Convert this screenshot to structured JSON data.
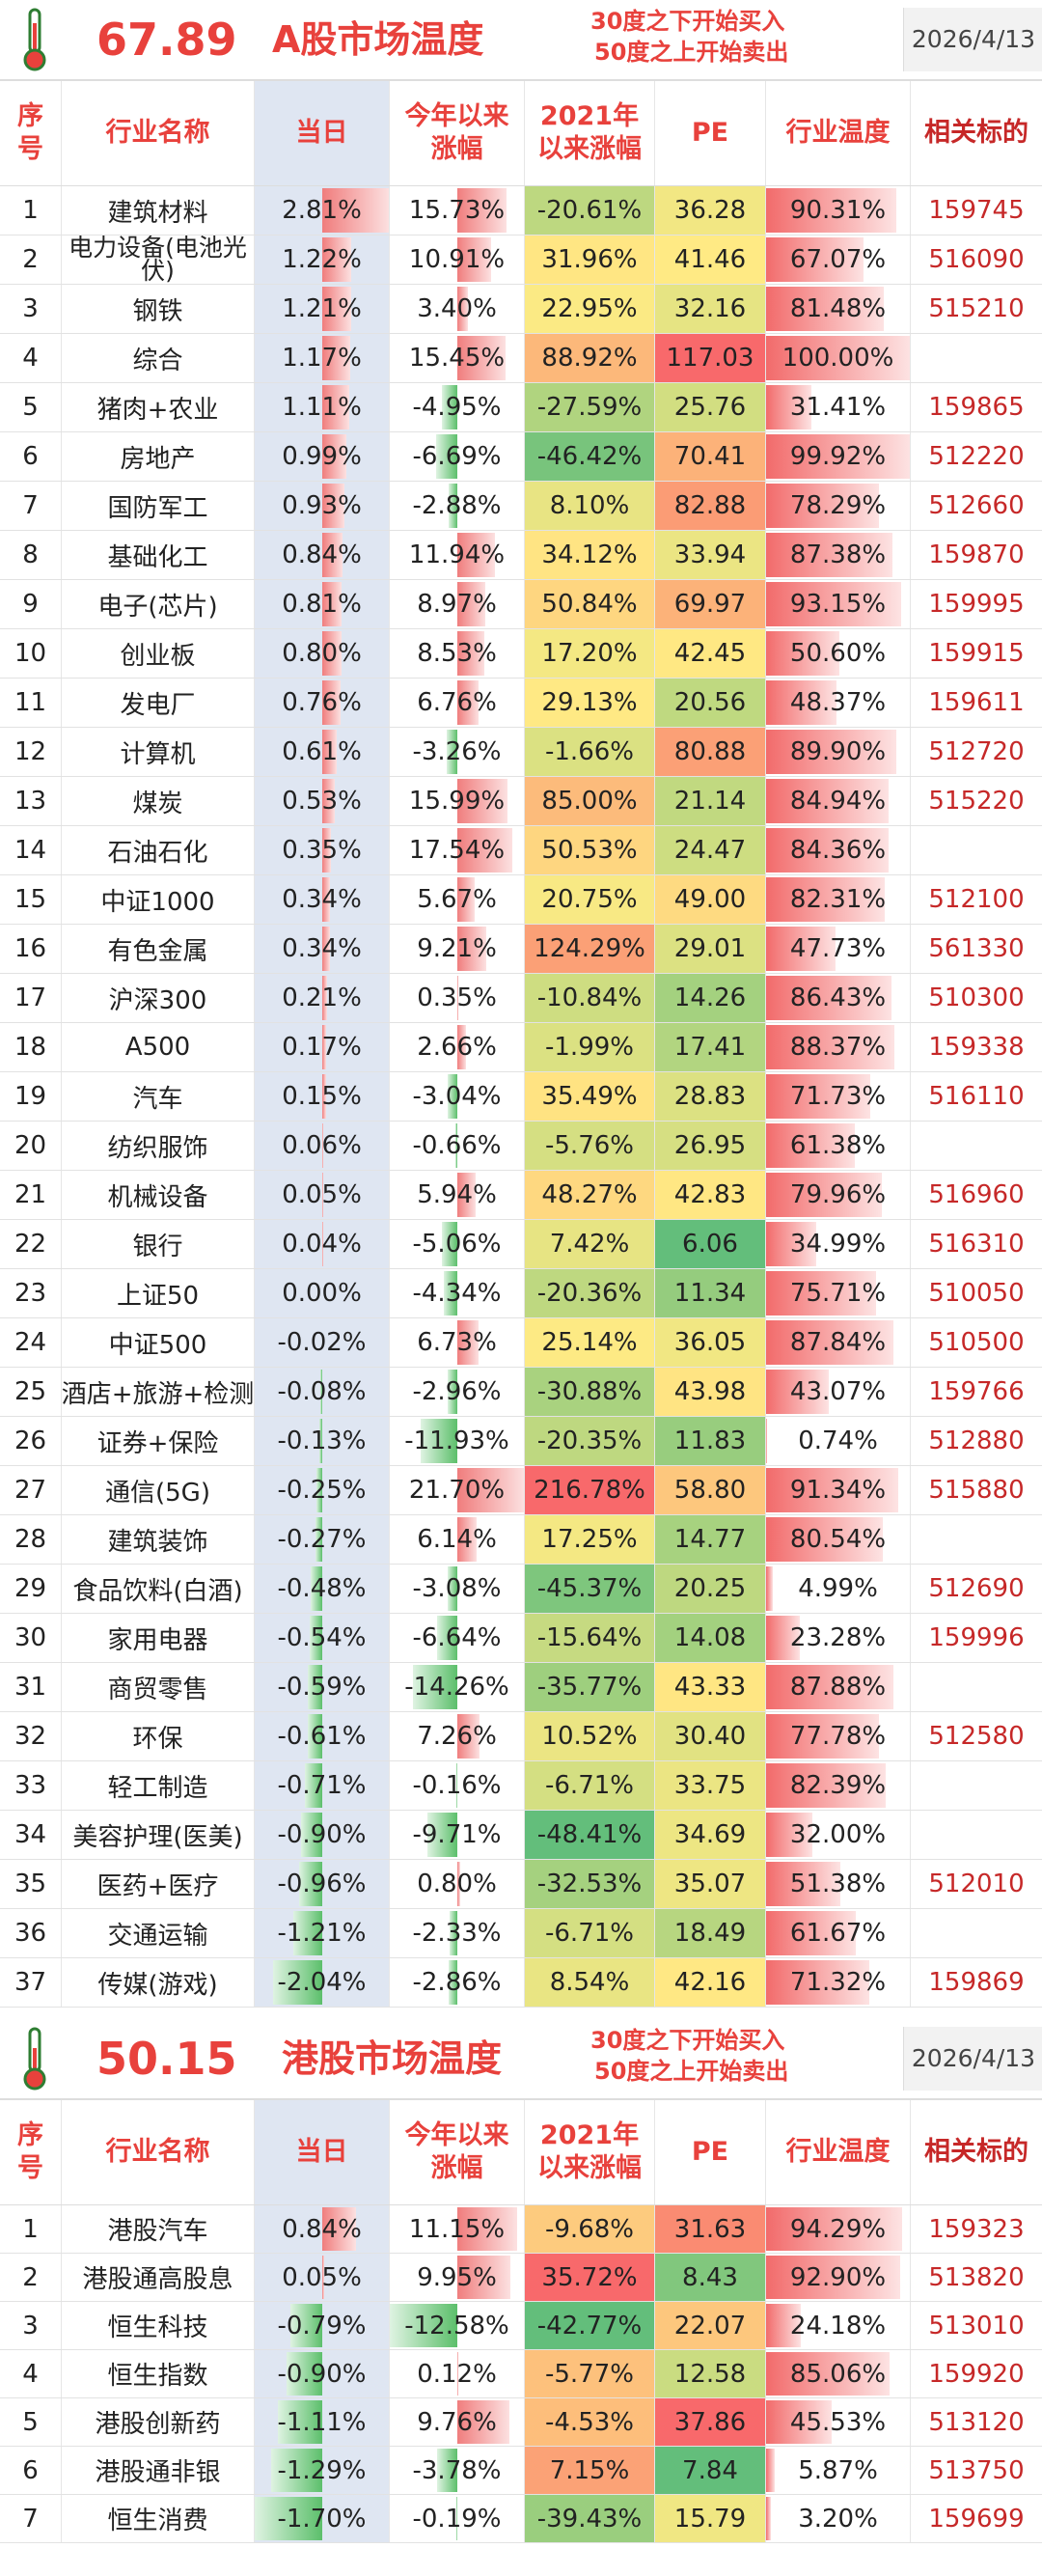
{
  "colors": {
    "red": "#e8413c",
    "bar_red": "#f4a9a9",
    "bar_green": "#7fc98a",
    "code": "#c62828",
    "day_bg": "#dfe6f2"
  },
  "icons": {
    "thermometer": "thermometer-icon"
  },
  "columns": [
    "序号",
    "行业名称",
    "当日",
    "今年以来涨幅",
    "2021年以来涨幅",
    "PE",
    "行业温度",
    "相关标的"
  ],
  "a_share": {
    "temperature": "67.89",
    "title": "A股市场温度",
    "note_line1": "30度之下开始买入",
    "note_line2": "50度之上开始卖出",
    "date": "2026/4/13",
    "rows": [
      {
        "idx": "1",
        "name": "建筑材料",
        "day": 2.81,
        "ytd": 15.73,
        "since": -20.61,
        "pe": "36.28",
        "temp": 90.31,
        "code": "159745"
      },
      {
        "idx": "2",
        "name": "电力设备(电池光伏)",
        "day": 1.22,
        "ytd": 10.91,
        "since": 31.96,
        "pe": "41.46",
        "temp": 67.07,
        "code": "516090"
      },
      {
        "idx": "3",
        "name": "钢铁",
        "day": 1.21,
        "ytd": 3.4,
        "since": 22.95,
        "pe": "32.16",
        "temp": 81.48,
        "code": "515210"
      },
      {
        "idx": "4",
        "name": "综合",
        "day": 1.17,
        "ytd": 15.45,
        "since": 88.92,
        "pe": "117.03",
        "temp": 100.0,
        "code": ""
      },
      {
        "idx": "5",
        "name": "猪肉+农业",
        "day": 1.11,
        "ytd": -4.95,
        "since": -27.59,
        "pe": "25.76",
        "temp": 31.41,
        "code": "159865"
      },
      {
        "idx": "6",
        "name": "房地产",
        "day": 0.99,
        "ytd": -6.69,
        "since": -46.42,
        "pe": "70.41",
        "temp": 99.92,
        "code": "512220"
      },
      {
        "idx": "7",
        "name": "国防军工",
        "day": 0.93,
        "ytd": -2.88,
        "since": 8.1,
        "pe": "82.88",
        "temp": 78.29,
        "code": "512660"
      },
      {
        "idx": "8",
        "name": "基础化工",
        "day": 0.84,
        "ytd": 11.94,
        "since": 34.12,
        "pe": "33.94",
        "temp": 87.38,
        "code": "159870"
      },
      {
        "idx": "9",
        "name": "电子(芯片)",
        "day": 0.81,
        "ytd": 8.97,
        "since": 50.84,
        "pe": "69.97",
        "temp": 93.15,
        "code": "159995"
      },
      {
        "idx": "10",
        "name": "创业板",
        "day": 0.8,
        "ytd": 8.53,
        "since": 17.2,
        "pe": "42.45",
        "temp": 50.6,
        "code": "159915"
      },
      {
        "idx": "11",
        "name": "发电厂",
        "day": 0.76,
        "ytd": 6.76,
        "since": 29.13,
        "pe": "20.56",
        "temp": 48.37,
        "code": "159611"
      },
      {
        "idx": "12",
        "name": "计算机",
        "day": 0.61,
        "ytd": -3.26,
        "since": -1.66,
        "pe": "80.88",
        "temp": 89.9,
        "code": "512720"
      },
      {
        "idx": "13",
        "name": "煤炭",
        "day": 0.53,
        "ytd": 15.99,
        "since": 85.0,
        "pe": "21.14",
        "temp": 84.94,
        "code": "515220"
      },
      {
        "idx": "14",
        "name": "石油石化",
        "day": 0.35,
        "ytd": 17.54,
        "since": 50.53,
        "pe": "24.47",
        "temp": 84.36,
        "code": ""
      },
      {
        "idx": "15",
        "name": "中证1000",
        "day": 0.34,
        "ytd": 5.67,
        "since": 20.75,
        "pe": "49.00",
        "temp": 82.31,
        "code": "512100"
      },
      {
        "idx": "16",
        "name": "有色金属",
        "day": 0.34,
        "ytd": 9.21,
        "since": 124.29,
        "pe": "29.01",
        "temp": 47.73,
        "code": "561330"
      },
      {
        "idx": "17",
        "name": "沪深300",
        "day": 0.21,
        "ytd": 0.35,
        "since": -10.84,
        "pe": "14.26",
        "temp": 86.43,
        "code": "510300"
      },
      {
        "idx": "18",
        "name": "A500",
        "day": 0.17,
        "ytd": 2.66,
        "since": -1.99,
        "pe": "17.41",
        "temp": 88.37,
        "code": "159338"
      },
      {
        "idx": "19",
        "name": "汽车",
        "day": 0.15,
        "ytd": -3.04,
        "since": 35.49,
        "pe": "28.83",
        "temp": 71.73,
        "code": "516110"
      },
      {
        "idx": "20",
        "name": "纺织服饰",
        "day": 0.06,
        "ytd": -0.66,
        "since": -5.76,
        "pe": "26.95",
        "temp": 61.38,
        "code": ""
      },
      {
        "idx": "21",
        "name": "机械设备",
        "day": 0.05,
        "ytd": 5.94,
        "since": 48.27,
        "pe": "42.83",
        "temp": 79.96,
        "code": "516960"
      },
      {
        "idx": "22",
        "name": "银行",
        "day": 0.04,
        "ytd": -5.06,
        "since": 7.42,
        "pe": "6.06",
        "temp": 34.99,
        "code": "516310"
      },
      {
        "idx": "23",
        "name": "上证50",
        "day": 0.0,
        "ytd": -4.34,
        "since": -20.36,
        "pe": "11.34",
        "temp": 75.71,
        "code": "510050"
      },
      {
        "idx": "24",
        "name": "中证500",
        "day": -0.02,
        "ytd": 6.73,
        "since": 25.14,
        "pe": "36.05",
        "temp": 87.84,
        "code": "510500"
      },
      {
        "idx": "25",
        "name": "酒店+旅游+检测",
        "day": -0.08,
        "ytd": -2.96,
        "since": -30.88,
        "pe": "43.98",
        "temp": 43.07,
        "code": "159766"
      },
      {
        "idx": "26",
        "name": "证券+保险",
        "day": -0.13,
        "ytd": -11.93,
        "since": -20.35,
        "pe": "11.83",
        "temp": 0.74,
        "code": "512880"
      },
      {
        "idx": "27",
        "name": "通信(5G)",
        "day": -0.25,
        "ytd": 21.7,
        "since": 216.78,
        "pe": "58.80",
        "temp": 91.34,
        "code": "515880"
      },
      {
        "idx": "28",
        "name": "建筑装饰",
        "day": -0.27,
        "ytd": 6.14,
        "since": 17.25,
        "pe": "14.77",
        "temp": 80.54,
        "code": ""
      },
      {
        "idx": "29",
        "name": "食品饮料(白酒)",
        "day": -0.48,
        "ytd": -3.08,
        "since": -45.37,
        "pe": "20.25",
        "temp": 4.99,
        "code": "512690"
      },
      {
        "idx": "30",
        "name": "家用电器",
        "day": -0.54,
        "ytd": -6.64,
        "since": -15.64,
        "pe": "14.08",
        "temp": 23.28,
        "code": "159996"
      },
      {
        "idx": "31",
        "name": "商贸零售",
        "day": -0.59,
        "ytd": -14.26,
        "since": -35.77,
        "pe": "43.33",
        "temp": 87.88,
        "code": ""
      },
      {
        "idx": "32",
        "name": "环保",
        "day": -0.61,
        "ytd": 7.26,
        "since": 10.52,
        "pe": "30.40",
        "temp": 77.78,
        "code": "512580"
      },
      {
        "idx": "33",
        "name": "轻工制造",
        "day": -0.71,
        "ytd": -0.16,
        "since": -6.71,
        "pe": "33.75",
        "temp": 82.39,
        "code": ""
      },
      {
        "idx": "34",
        "name": "美容护理(医美)",
        "day": -0.9,
        "ytd": -9.71,
        "since": -48.41,
        "pe": "34.69",
        "temp": 32.0,
        "code": ""
      },
      {
        "idx": "35",
        "name": "医药+医疗",
        "day": -0.96,
        "ytd": 0.8,
        "since": -32.53,
        "pe": "35.07",
        "temp": 51.38,
        "code": "512010"
      },
      {
        "idx": "36",
        "name": "交通运输",
        "day": -1.21,
        "ytd": -2.33,
        "since": -6.71,
        "pe": "18.49",
        "temp": 61.67,
        "code": ""
      },
      {
        "idx": "37",
        "name": "传媒(游戏)",
        "day": -2.04,
        "ytd": -2.86,
        "since": 8.54,
        "pe": "42.16",
        "temp": 71.32,
        "code": "159869"
      }
    ]
  },
  "hk_share": {
    "temperature": "50.15",
    "title": "港股市场温度",
    "note_line1": "30度之下开始买入",
    "note_line2": "50度之上开始卖出",
    "date": "2026/4/13",
    "rows": [
      {
        "idx": "1",
        "name": "港股汽车",
        "day": 0.84,
        "ytd": 11.15,
        "since": -9.68,
        "pe": "31.63",
        "temp": 94.29,
        "code": "159323"
      },
      {
        "idx": "2",
        "name": "港股通高股息",
        "day": 0.05,
        "ytd": 9.95,
        "since": 35.72,
        "pe": "8.43",
        "temp": 92.9,
        "code": "513820"
      },
      {
        "idx": "3",
        "name": "恒生科技",
        "day": -0.79,
        "ytd": -12.58,
        "since": -42.77,
        "pe": "22.07",
        "temp": 24.18,
        "code": "513010"
      },
      {
        "idx": "4",
        "name": "恒生指数",
        "day": -0.9,
        "ytd": 0.12,
        "since": -5.77,
        "pe": "12.58",
        "temp": 85.06,
        "code": "159920"
      },
      {
        "idx": "5",
        "name": "港股创新药",
        "day": -1.11,
        "ytd": 9.76,
        "since": -4.53,
        "pe": "37.86",
        "temp": 45.53,
        "code": "513120"
      },
      {
        "idx": "6",
        "name": "港股通非银",
        "day": -1.29,
        "ytd": -3.78,
        "since": 7.15,
        "pe": "7.84",
        "temp": 5.87,
        "code": "513750"
      },
      {
        "idx": "7",
        "name": "恒生消费",
        "day": -1.7,
        "ytd": -0.19,
        "since": -39.43,
        "pe": "15.79",
        "temp": 3.2,
        "code": "159699"
      }
    ]
  }
}
